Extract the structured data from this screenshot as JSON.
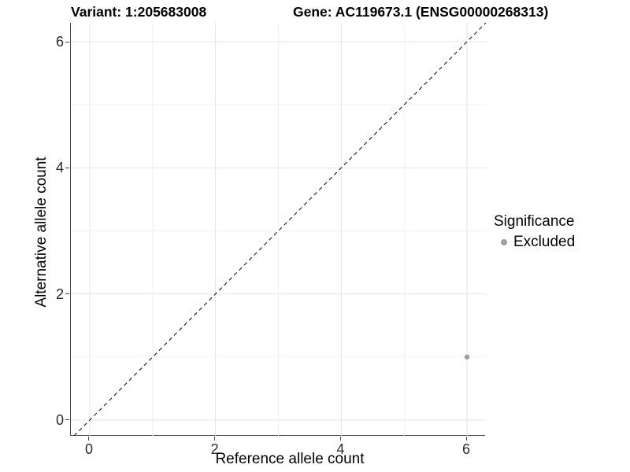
{
  "chart_data": {
    "type": "scatter",
    "titles": {
      "left": "Variant: 1:205683008",
      "right": "Gene: AC119673.1 (ENSG00000268313)"
    },
    "xlabel": "Reference allele count",
    "ylabel": "Alternative allele count",
    "xlim": [
      -0.3,
      6.3
    ],
    "ylim": [
      -0.25,
      6.3
    ],
    "x_major_ticks": [
      0,
      2,
      4,
      6
    ],
    "y_major_ticks": [
      0,
      2,
      4,
      6
    ],
    "x_minor_gridlines": [
      1,
      3,
      5
    ],
    "y_minor_gridlines": [
      1,
      3,
      5
    ],
    "grid": "major-and-minor",
    "points": [
      {
        "x": 6,
        "y": 1,
        "series": "Excluded"
      }
    ],
    "identity_line": {
      "type": "abline",
      "slope": 1,
      "intercept": 0,
      "style": "dashed",
      "color": "#1a1a1a"
    },
    "legend": {
      "title": "Significance",
      "position": "right",
      "items": [
        {
          "label": "Excluded",
          "color": "#9e9e9e"
        }
      ]
    },
    "colors": {
      "point": "#9e9e9e",
      "grid_major": "#e5e5e5",
      "grid_minor": "#f2f2f2",
      "axis_line": "#474747",
      "tick_label": "#2b2b2b",
      "background": "#ffffff"
    }
  }
}
